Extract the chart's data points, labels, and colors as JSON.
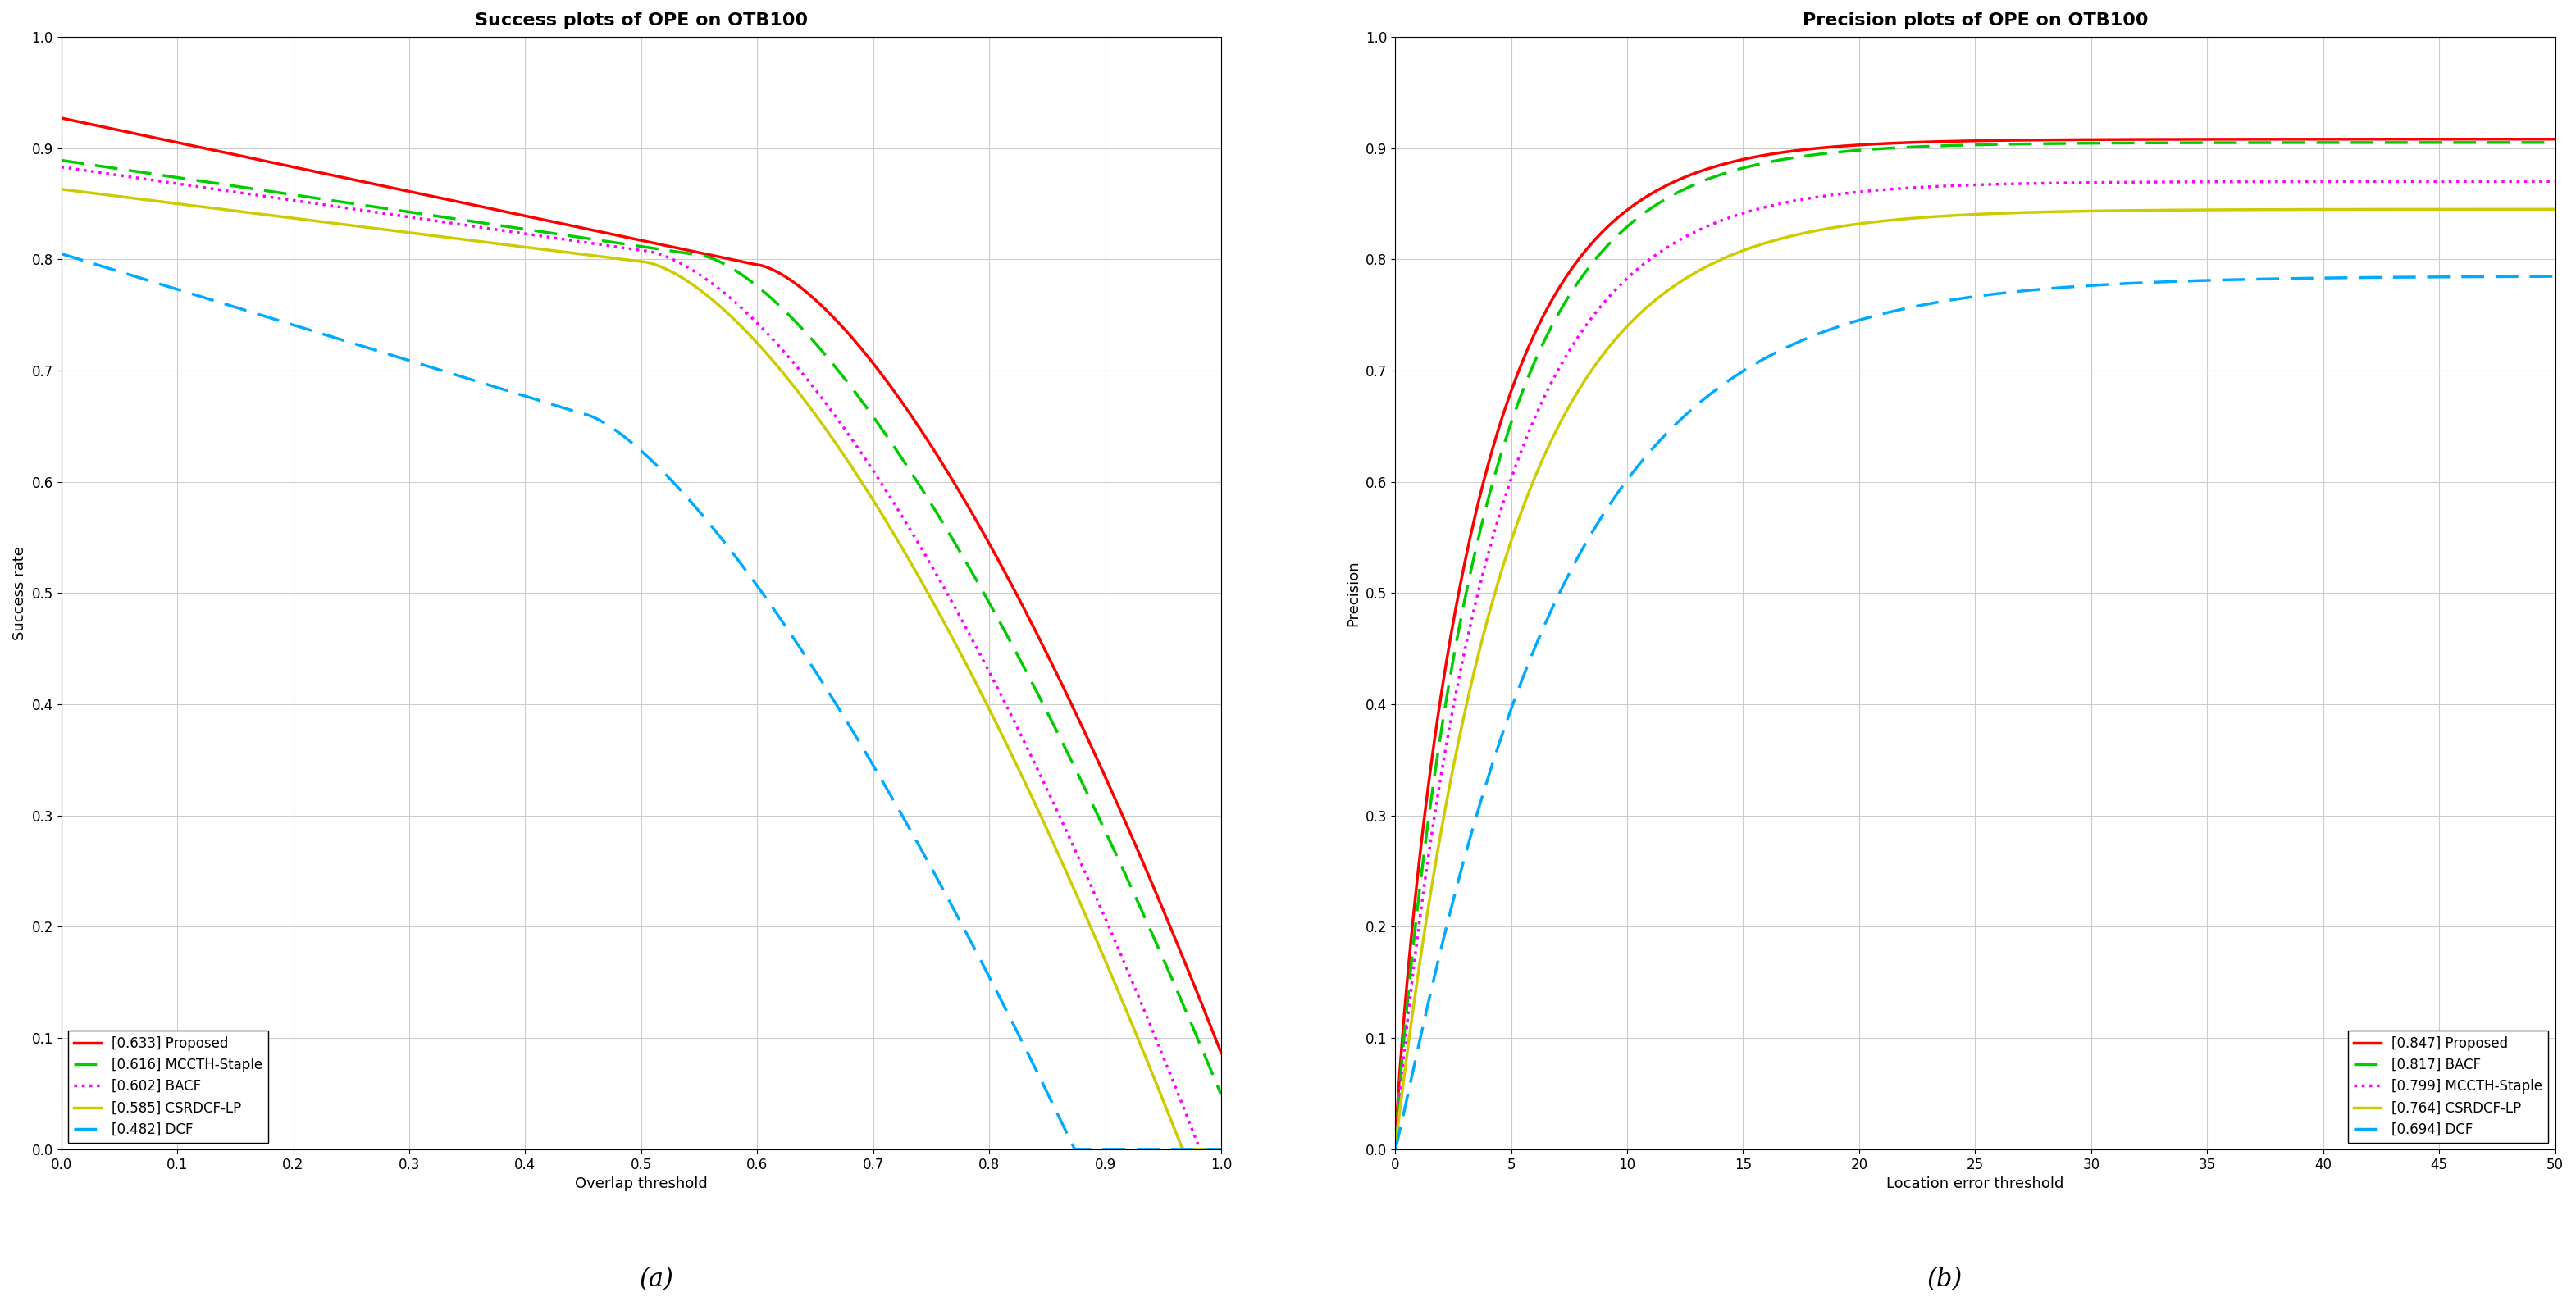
{
  "left_title": "Success plots of OPE on OTB100",
  "right_title": "Precision plots of OPE on OTB100",
  "left_xlabel": "Overlap threshold",
  "left_ylabel": "Success rate",
  "right_xlabel": "Location error threshold",
  "right_ylabel": "Precision",
  "caption_a": "(a)",
  "caption_b": "(b)",
  "left_xlim": [
    0.0,
    1.0
  ],
  "left_ylim": [
    0.0,
    1.0
  ],
  "right_xlim": [
    0.0,
    50.0
  ],
  "right_ylim": [
    0.0,
    1.0
  ],
  "left_legend": [
    {
      "label": "[0.633] Proposed",
      "color": "#ff0000",
      "linestyle": "solid",
      "linewidth": 2.5
    },
    {
      "label": "[0.616] MCCTH-Staple",
      "color": "#00cc00",
      "linestyle": "dashed",
      "linewidth": 2.5
    },
    {
      "label": "[0.602] BACF",
      "color": "#ff00ff",
      "linestyle": "dotted",
      "linewidth": 2.5
    },
    {
      "label": "[0.585] CSRDCF-LP",
      "color": "#cccc00",
      "linestyle": "solid",
      "linewidth": 2.5
    },
    {
      "label": "[0.482] DCF",
      "color": "#00aaff",
      "linestyle": "dashed",
      "linewidth": 2.5
    }
  ],
  "right_legend": [
    {
      "label": "[0.847] Proposed",
      "color": "#ff0000",
      "linestyle": "solid",
      "linewidth": 2.5
    },
    {
      "label": "[0.817] BACF",
      "color": "#00cc00",
      "linestyle": "dashed",
      "linewidth": 2.5
    },
    {
      "label": "[0.799] MCCTH-Staple",
      "color": "#ff00ff",
      "linestyle": "dotted",
      "linewidth": 2.5
    },
    {
      "label": "[0.764] CSRDCF-LP",
      "color": "#cccc00",
      "linestyle": "solid",
      "linewidth": 2.5
    },
    {
      "label": "[0.694] DCF",
      "color": "#00aaff",
      "linestyle": "dashed",
      "linewidth": 2.5
    }
  ],
  "left_xticks": [
    0.0,
    0.1,
    0.2,
    0.3,
    0.4,
    0.5,
    0.6,
    0.7,
    0.8,
    0.9,
    1.0
  ],
  "left_yticks": [
    0.0,
    0.1,
    0.2,
    0.3,
    0.4,
    0.5,
    0.6,
    0.7,
    0.8,
    0.9,
    1.0
  ],
  "right_xticks": [
    0,
    5,
    10,
    15,
    20,
    25,
    30,
    35,
    40,
    45,
    50
  ],
  "right_yticks": [
    0.0,
    0.1,
    0.2,
    0.3,
    0.4,
    0.5,
    0.6,
    0.7,
    0.8,
    0.9,
    1.0
  ],
  "bg_color": "#ffffff",
  "grid_color": "#cccccc",
  "title_fontsize": 16,
  "label_fontsize": 13,
  "tick_fontsize": 12,
  "legend_fontsize": 12,
  "caption_fontsize": 22
}
